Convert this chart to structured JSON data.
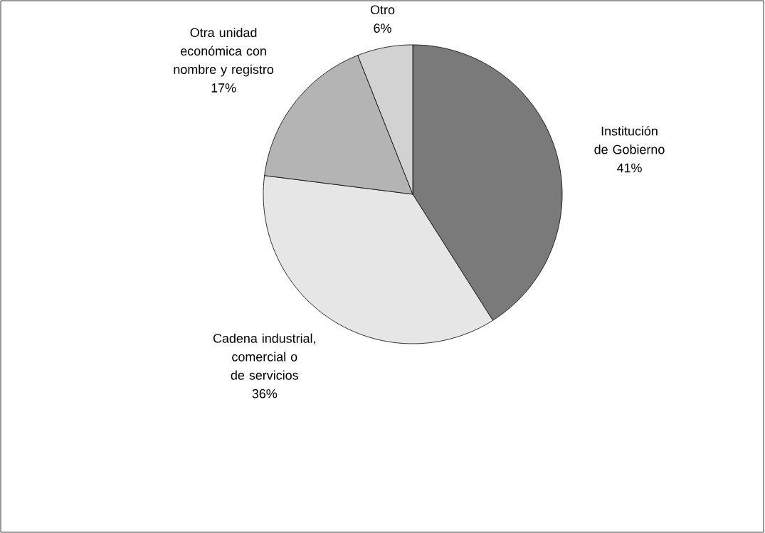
{
  "chart_data": {
    "type": "pie",
    "categories": [
      "Institución de Gobierno",
      "Cadena industrial, comercial o de servicios",
      "Otra unidad económica con nombre y registro",
      "Otro"
    ],
    "values": [
      41,
      36,
      17,
      6
    ],
    "value_labels": [
      "41%",
      "36%",
      "17%",
      "6%"
    ],
    "colors": [
      "#7a7a7a",
      "#e6e6e6",
      "#b4b4b4",
      "#d2d2d2"
    ]
  }
}
